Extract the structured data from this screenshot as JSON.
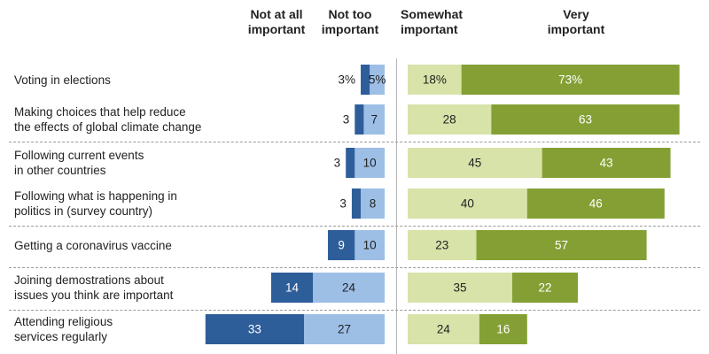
{
  "chart_data": {
    "type": "bar",
    "stacked": "diverging",
    "legend": "top",
    "negative_side": [
      {
        "name": "Not at all important",
        "color": "#2E5E9A",
        "text_color": "#ffffff"
      },
      {
        "name": "Not too important",
        "color": "#9DBFE6",
        "text_color": "#222222"
      }
    ],
    "positive_side": [
      {
        "name": "Somewhat important",
        "color": "#D7E3A9",
        "text_color": "#222222"
      },
      {
        "name": "Very important",
        "color": "#84A034",
        "text_color": "#ffffff"
      }
    ],
    "header_lines": {
      "not_at_all": [
        "Not at all",
        "important"
      ],
      "not_too": [
        "Not too",
        "important"
      ],
      "somewhat": [
        "Somewhat",
        "important"
      ],
      "very": [
        "Very",
        "important"
      ]
    },
    "categories": [
      "Voting in elections",
      "Making choices that help reduce\nthe effects of global climate change",
      "Following current events\nin other countries",
      "Following what is happening in\npolitics in (survey country)",
      "Getting a coronavirus vaccine",
      "Joining demostrations about\nissues you think are important",
      "Attending religious\nservices regularly"
    ],
    "series": [
      {
        "name": "Not at all important",
        "values": [
          3,
          3,
          3,
          3,
          9,
          14,
          33
        ]
      },
      {
        "name": "Not too important",
        "values": [
          5,
          7,
          10,
          8,
          10,
          24,
          27
        ]
      },
      {
        "name": "Somewhat important",
        "values": [
          18,
          28,
          45,
          40,
          23,
          35,
          24
        ]
      },
      {
        "name": "Very important",
        "values": [
          73,
          63,
          43,
          46,
          57,
          22,
          16
        ]
      }
    ],
    "value_labels": {
      "not_at_all": [
        "3%",
        "3",
        "3",
        "3",
        "9",
        "14",
        "33"
      ],
      "not_too": [
        "5%",
        "7",
        "10",
        "8",
        "10",
        "24",
        "27"
      ],
      "somewhat": [
        "18%",
        "28",
        "45",
        "40",
        "23",
        "35",
        "24"
      ],
      "very": [
        "73%",
        "63",
        "43",
        "46",
        "57",
        "22",
        "16"
      ]
    },
    "dividers_after_rows": [
      1,
      3,
      4,
      5
    ]
  }
}
